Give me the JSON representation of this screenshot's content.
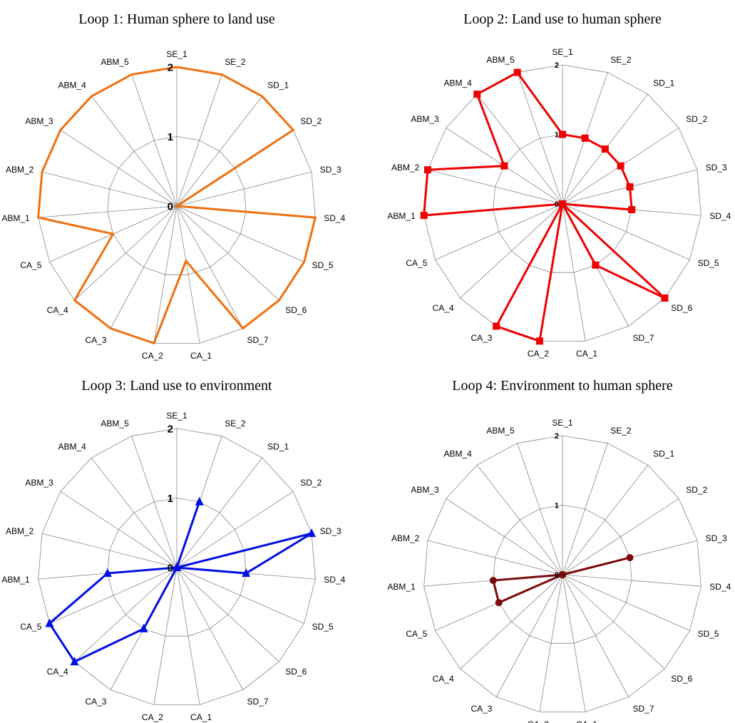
{
  "categories": [
    "SE_1",
    "SE_2",
    "SD_1",
    "SD_2",
    "SD_3",
    "SD_4",
    "SD_5",
    "SD_6",
    "SD_7",
    "CA_1",
    "CA_2",
    "CA_3",
    "CA_4",
    "CA_5",
    "ABM_1",
    "ABM_2",
    "ABM_3",
    "ABM_4",
    "ABM_5"
  ],
  "chart_data": [
    {
      "type": "radar",
      "title": "Loop 1: Human sphere to land use",
      "rlim": [
        0,
        2
      ],
      "ticks": [
        "0",
        "1",
        "2"
      ],
      "marker": "none",
      "color": "#f07010",
      "values": [
        2,
        2,
        2,
        2,
        0,
        2,
        2,
        2,
        2,
        0.8,
        2,
        2,
        2,
        1,
        2,
        2,
        2,
        2,
        2
      ]
    },
    {
      "type": "radar",
      "title": "Loop 2: Land use to human sphere",
      "rlim": [
        0,
        2
      ],
      "ticks": [
        "0",
        "1",
        "2"
      ],
      "marker": "square",
      "color": "#ee0000",
      "values": [
        1,
        1,
        1,
        1,
        1,
        1,
        0,
        2,
        1,
        0,
        2,
        2,
        0,
        0,
        2,
        2,
        1,
        2,
        2
      ]
    },
    {
      "type": "radar",
      "title": "Loop 3: Land use to environment",
      "rlim": [
        0,
        2
      ],
      "ticks": [
        "0",
        "1",
        "2"
      ],
      "marker": "triangle",
      "color": "#0010e0",
      "values": [
        0,
        1,
        0,
        0,
        2,
        1,
        0,
        0,
        0,
        0,
        0,
        1,
        2,
        2,
        1,
        0,
        0,
        0,
        0
      ]
    },
    {
      "type": "radar",
      "title": "Loop 4: Environment to human sphere",
      "rlim": [
        0,
        2
      ],
      "ticks": [
        "0",
        "1",
        "2"
      ],
      "marker": "circle",
      "color": "#7a0a0a",
      "values": [
        0,
        0,
        0,
        0,
        1,
        0,
        0,
        0,
        0,
        0,
        0,
        0,
        0,
        1,
        1,
        0,
        0,
        0,
        0
      ]
    }
  ]
}
